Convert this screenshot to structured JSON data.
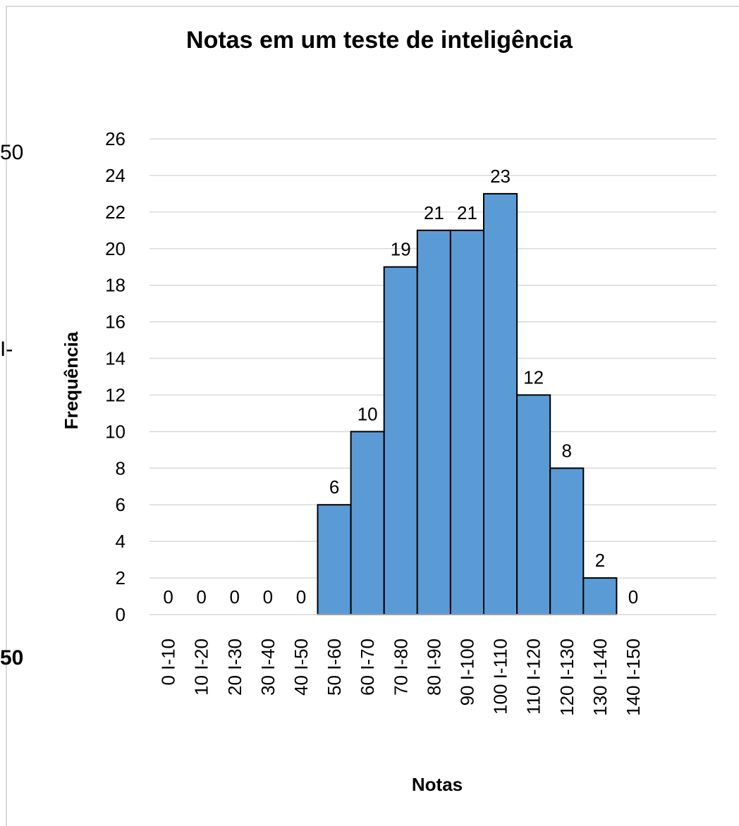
{
  "background_fragments": {
    "top_left": "50",
    "middle_left": "I-",
    "bottom_left": "50"
  },
  "chart_data": {
    "type": "bar",
    "title": "Notas em um teste de inteligência",
    "xlabel": "Notas",
    "ylabel": "Frequência",
    "categories": [
      "0 I-10",
      "10 I-20",
      "20 I-30",
      "30 I-40",
      "40 I-50",
      "50 I-60",
      "60 I-70",
      "70 I-80",
      "80 I-90",
      "90 I-100",
      "100 I-110",
      "110 I-120",
      "120 I-130",
      "130 I-140",
      "140 I-150"
    ],
    "values": [
      0,
      0,
      0,
      0,
      0,
      6,
      10,
      19,
      21,
      21,
      23,
      12,
      8,
      2,
      0
    ],
    "ylim": [
      0,
      26
    ],
    "yticks": [
      0,
      2,
      4,
      6,
      8,
      10,
      12,
      14,
      16,
      18,
      20,
      22,
      24,
      26
    ],
    "grid": true,
    "legend": "none",
    "colors": {
      "bar_fill": "#5b9bd5",
      "bar_stroke": "#000000",
      "gridline": "#d9d9d9"
    }
  }
}
